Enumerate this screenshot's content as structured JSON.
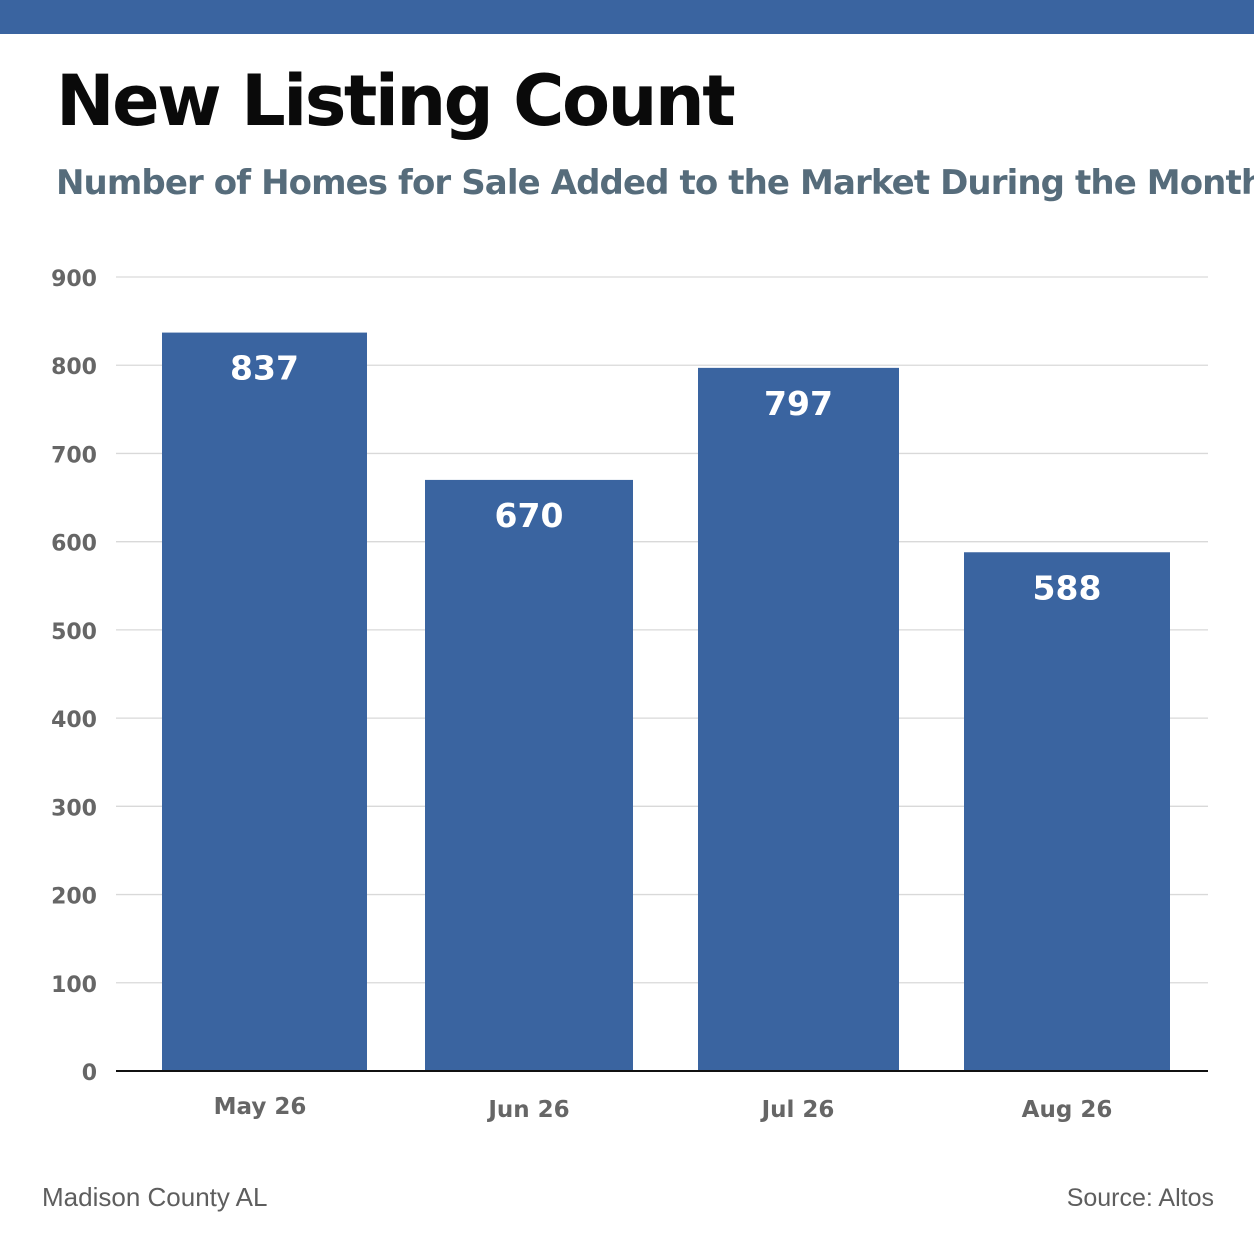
{
  "header": {
    "title": "New Listing Count",
    "subtitle": "Number of Homes for Sale Added to the Market During the Month"
  },
  "footer": {
    "region": "Madison County AL",
    "source": "Source: Altos"
  },
  "colors": {
    "bar": "#3a64a0",
    "top_bar": "#3a64a0",
    "grid": "#d9d9d9",
    "axis": "#111111",
    "tick_text": "#666666",
    "bar_label": "#ffffff"
  },
  "chart_data": {
    "type": "bar",
    "title": "New Listing Count",
    "subtitle": "Number of Homes for Sale Added to the Market During the Month",
    "categories": [
      "May 26",
      "Jun 26",
      "Jul 26",
      "Aug 26"
    ],
    "values": [
      837,
      670,
      797,
      588
    ],
    "data_labels": [
      "837",
      "670",
      "797",
      "588"
    ],
    "xlabel": "",
    "ylabel": "",
    "ylim": [
      0,
      900
    ],
    "yticks": [
      0,
      100,
      200,
      300,
      400,
      500,
      600,
      700,
      800,
      900
    ],
    "grid": true,
    "legend": "none"
  }
}
